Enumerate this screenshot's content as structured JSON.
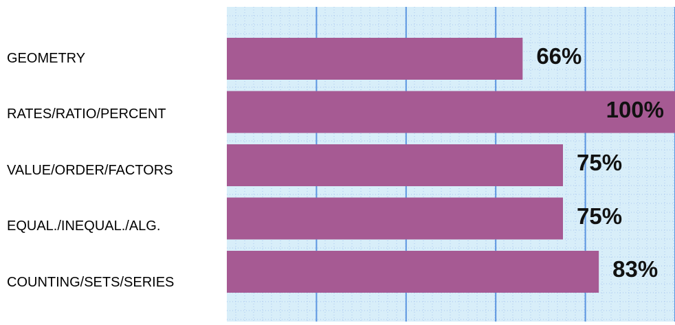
{
  "chart_data": {
    "type": "bar",
    "orientation": "horizontal",
    "categories": [
      "GEOMETRY",
      "RATES/RATIO/PERCENT",
      "VALUE/ORDER/FACTORS",
      "EQUAL./INEQUAL./ALG.",
      "COUNTING/SETS/SERIES"
    ],
    "values": [
      66,
      100,
      75,
      75,
      83
    ],
    "value_labels": [
      "66%",
      "100%",
      "75%",
      "75%",
      "83%"
    ],
    "xlim": [
      0,
      100
    ],
    "grid": true,
    "legend": "none"
  },
  "colors": {
    "bar": "#a65a93",
    "plot_background": "#d8eef9",
    "grid_major": "#5b95e0",
    "grid_minor": "#a9c7ee"
  }
}
